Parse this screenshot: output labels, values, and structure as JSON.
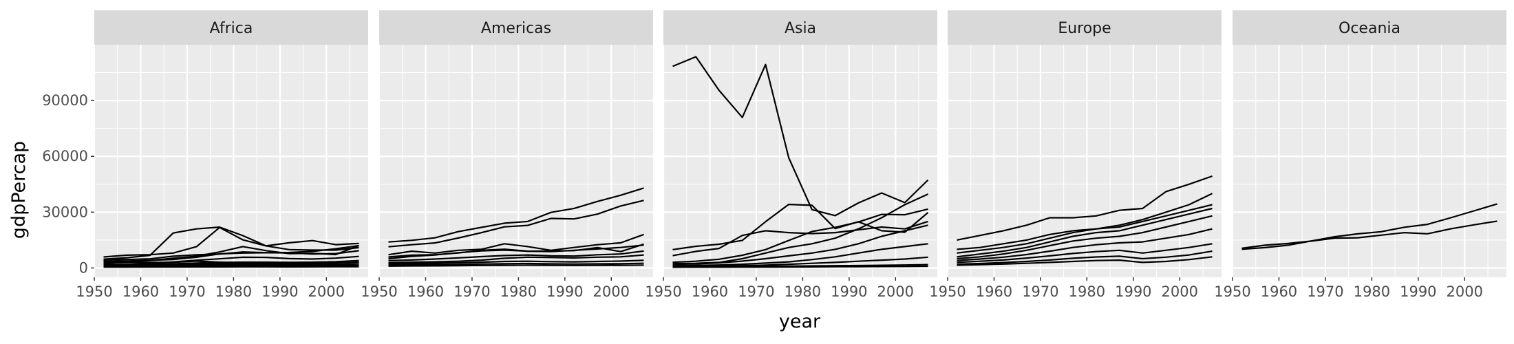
{
  "chart_data": {
    "type": "line",
    "xlabel": "year",
    "ylabel": "gdpPercap",
    "xlim": [
      1950,
      2009
    ],
    "ylim": [
      -5000,
      120000
    ],
    "x_ticks": [
      1950,
      1960,
      1970,
      1980,
      1990,
      2000
    ],
    "y_ticks": [
      0,
      30000,
      60000,
      90000
    ],
    "grid": true,
    "line_color": "#000000",
    "panel_background": "#ebebeb",
    "strip_background": "#d9d9d9",
    "years": [
      1952,
      1957,
      1962,
      1967,
      1972,
      1977,
      1982,
      1987,
      1992,
      1997,
      2002,
      2007
    ],
    "facets": [
      {
        "name": "Africa",
        "series": [
          {
            "values": [
              4725,
              5488,
              6757,
              18773,
              21011,
              21951,
              17364,
              11864,
              13522,
              14723,
              12522,
              13206
            ]
          },
          {
            "values": [
              2449,
              3014,
              2551,
              3247,
              4183,
              4910,
              5745,
              5681,
              5023,
              4797,
              5288,
              6223
            ]
          },
          {
            "values": [
              3522,
              3780,
              4087,
              4580,
              5770,
              7586,
              8000,
              8200,
              8058,
              7520,
              7727,
              9269
            ]
          },
          {
            "values": [
              3146,
              3173,
              4040,
              5213,
              6353,
              8606,
              11508,
              9326,
              7730,
              7883,
              7208,
              12057
            ]
          },
          {
            "values": [
              5911,
              6857,
              7134,
              8028,
              11403,
              21745,
              15113,
              11864,
              9880,
              9596,
              9603,
              10948
            ]
          },
          {
            "values": [
              4269,
              4525,
              4907,
              6300,
              7100,
              7500,
              8600,
              8200,
              8300,
              8900,
              10300,
              12000
            ]
          },
          {
            "values": [
              2669,
              2864,
              3021,
              3020,
              3694,
              3081,
              2571,
              2480,
              2410,
              2542,
              2727,
              3143
            ]
          },
          {
            "values": [
              1769,
              1925,
              2038,
              2237,
              2600,
              3000,
              3100,
              3100,
              3000,
              3100,
              3400,
              4000
            ]
          },
          {
            "values": [
              1418,
              1500,
              1600,
              1800,
              2000,
              2200,
              2300,
              2300,
              2200,
              2300,
              2600,
              3000
            ]
          },
          {
            "values": [
              1053,
              1200,
              1300,
              1450,
              1600,
              1700,
              1750,
              1700,
              1650,
              1700,
              1850,
              2100
            ]
          },
          {
            "values": [
              850,
              900,
              950,
              1000,
              1050,
              1100,
              1150,
              1150,
              1100,
              1150,
              1200,
              1300
            ]
          },
          {
            "values": [
              500,
              520,
              540,
              560,
              580,
              600,
              620,
              620,
              600,
              620,
              650,
              700
            ]
          }
        ]
      },
      {
        "name": "Americas",
        "series": [
          {
            "values": [
              13990,
              14847,
              16173,
              19530,
              21806,
              24073,
              25010,
              29884,
              32004,
              35767,
              39097,
              42952
            ]
          },
          {
            "values": [
              11367,
              12490,
              13462,
              16077,
              18971,
              22091,
              22899,
              26627,
              26343,
              28955,
              33329,
              36319
            ]
          },
          {
            "values": [
              5911,
              6857,
              7134,
              8053,
              9443,
              10079,
              8998,
              9140,
              9308,
              10967,
              8798,
              12779
            ]
          },
          {
            "values": [
              7144,
              9000,
              8000,
              9500,
              10000,
              13000,
              11500,
              9500,
              11000,
              12500,
              13500,
              18000
            ]
          },
          {
            "values": [
              5000,
              6200,
              7000,
              8200,
              9200,
              9600,
              9000,
              8800,
              9500,
              10200,
              11000,
              12300
            ]
          },
          {
            "values": [
              3900,
              4300,
              4800,
              5400,
              6100,
              6700,
              7000,
              6500,
              6400,
              7100,
              7500,
              9100
            ]
          },
          {
            "values": [
              2800,
              3100,
              3300,
              3600,
              4200,
              5200,
              5800,
              5600,
              5400,
              5800,
              6000,
              7000
            ]
          },
          {
            "values": [
              2200,
              2400,
              2600,
              2800,
              3100,
              3500,
              3600,
              3400,
              3300,
              3500,
              3700,
              4100
            ]
          },
          {
            "values": [
              1600,
              1700,
              1800,
              1900,
              2100,
              2300,
              2400,
              2200,
              2100,
              2200,
              2300,
              2500
            ]
          },
          {
            "values": [
              1000,
              1100,
              1150,
              1250,
              1350,
              1450,
              1500,
              1400,
              1350,
              1400,
              1450,
              1550
            ]
          }
        ]
      },
      {
        "name": "Asia",
        "series": [
          {
            "values": [
              108382,
              113523,
              95458,
              80895,
              109348,
              59265,
              31354,
              28118,
              34933,
              40301,
              35110,
              47307
            ]
          },
          {
            "values": [
              9867,
              11636,
              12753,
              14805,
              24837,
              34168,
              33693,
              21198,
              24841,
              20005,
              19211,
              29796
            ]
          },
          {
            "values": [
              6598,
              8900,
              10500,
              17500,
              20000,
              19000,
              18500,
              19000,
              20500,
              22000,
              21000,
              25000
            ]
          },
          {
            "values": [
              3054,
              3629,
              4693,
              6836,
              9876,
              14778,
              19590,
              21852,
              24703,
              28816,
              28604,
              31656
            ]
          },
          {
            "values": [
              2316,
              2500,
              3000,
              5000,
              8000,
              11000,
              13000,
              16000,
              21000,
              27000,
              34000,
              39725
            ]
          },
          {
            "values": [
              1900,
              2200,
              2700,
              3700,
              5000,
              6500,
              8000,
              10000,
              13000,
              17000,
              20000,
              23000
            ]
          },
          {
            "values": [
              1200,
              1400,
              1600,
              2000,
              2600,
              3300,
              4500,
              6000,
              8000,
              10000,
              11500,
              13000
            ]
          },
          {
            "values": [
              800,
              900,
              1000,
              1200,
              1500,
              2000,
              2500,
              3000,
              3600,
              4200,
              4800,
              5800
            ]
          },
          {
            "values": [
              600,
              650,
              700,
              800,
              900,
              1000,
              1100,
              1200,
              1300,
              1450,
              1600,
              1800
            ]
          },
          {
            "values": [
              400,
              420,
              450,
              480,
              520,
              560,
              600,
              650,
              700,
              760,
              820,
              900
            ]
          }
        ]
      },
      {
        "name": "Europe",
        "series": [
          {
            "values": [
              15000,
              17500,
              20000,
              23000,
              27000,
              27000,
              28000,
              31000,
              32000,
              41000,
              45000,
              49357
            ]
          },
          {
            "values": [
              10000,
              11000,
              13000,
              15000,
              18000,
              20000,
              21000,
              23000,
              26000,
              30000,
              34000,
              40000
            ]
          },
          {
            "values": [
              8000,
              9500,
              11000,
              13000,
              16000,
              19000,
              21000,
              22000,
              25000,
              28000,
              31000,
              34000
            ]
          },
          {
            "values": [
              6000,
              7500,
              9000,
              11000,
              14000,
              17000,
              19000,
              20000,
              23000,
              26000,
              29000,
              32000
            ]
          },
          {
            "values": [
              5000,
              6000,
              7500,
              9500,
              12000,
              14500,
              16000,
              17000,
              19000,
              22000,
              25000,
              28000
            ]
          },
          {
            "values": [
              4000,
              4800,
              5800,
              7200,
              9000,
              11000,
              12500,
              13500,
              14000,
              16000,
              18000,
              21000
            ]
          },
          {
            "values": [
              3000,
              3600,
              4300,
              5300,
              6500,
              7800,
              8800,
              9500,
              8000,
              9500,
              11000,
              13000
            ]
          },
          {
            "values": [
              2000,
              2400,
              2900,
              3500,
              4300,
              5200,
              5900,
              6300,
              5000,
              5800,
              7000,
              9000
            ]
          },
          {
            "values": [
              1500,
              1800,
              2100,
              2500,
              3000,
              3500,
              4000,
              4200,
              3000,
              3500,
              4500,
              6000
            ]
          }
        ]
      },
      {
        "name": "Oceania",
        "series": [
          {
            "values": [
              10040,
              10950,
              12217,
              14526,
              16789,
              18334,
              19477,
              21889,
              23425,
              26998,
              30688,
              34435
            ]
          },
          {
            "values": [
              10557,
              12247,
              13176,
              14464,
              16046,
              16234,
              17632,
              19007,
              18363,
              21050,
              23190,
              25185
            ]
          }
        ]
      }
    ]
  }
}
